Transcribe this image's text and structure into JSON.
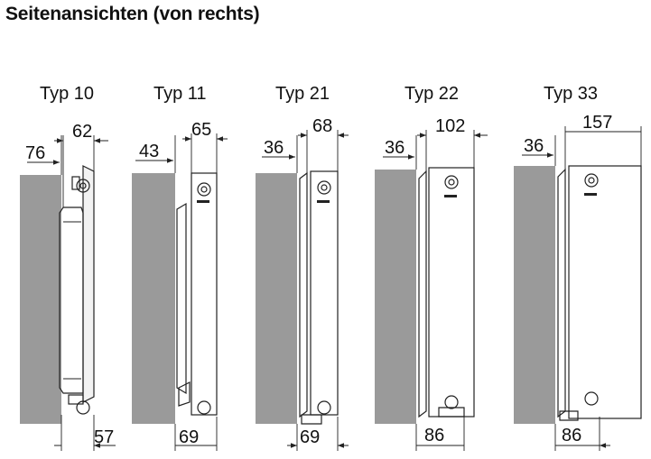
{
  "title": "Seitenansichten (von rechts)",
  "types": [
    {
      "label": "Typ 10",
      "wall_gap": "76",
      "depth": "62",
      "bottom": "57"
    },
    {
      "label": "Typ 11",
      "wall_gap": "43",
      "depth": "65",
      "bottom": "69"
    },
    {
      "label": "Typ 21",
      "wall_gap": "36",
      "depth": "68",
      "bottom": "69"
    },
    {
      "label": "Typ 22",
      "wall_gap": "36",
      "depth": "102",
      "bottom": "86"
    },
    {
      "label": "Typ 33",
      "wall_gap": "36",
      "depth": "157",
      "bottom": "86"
    }
  ],
  "colors": {
    "wall": "#9a9a9a",
    "outline": "#222222",
    "panel": "#f2f2f2"
  }
}
